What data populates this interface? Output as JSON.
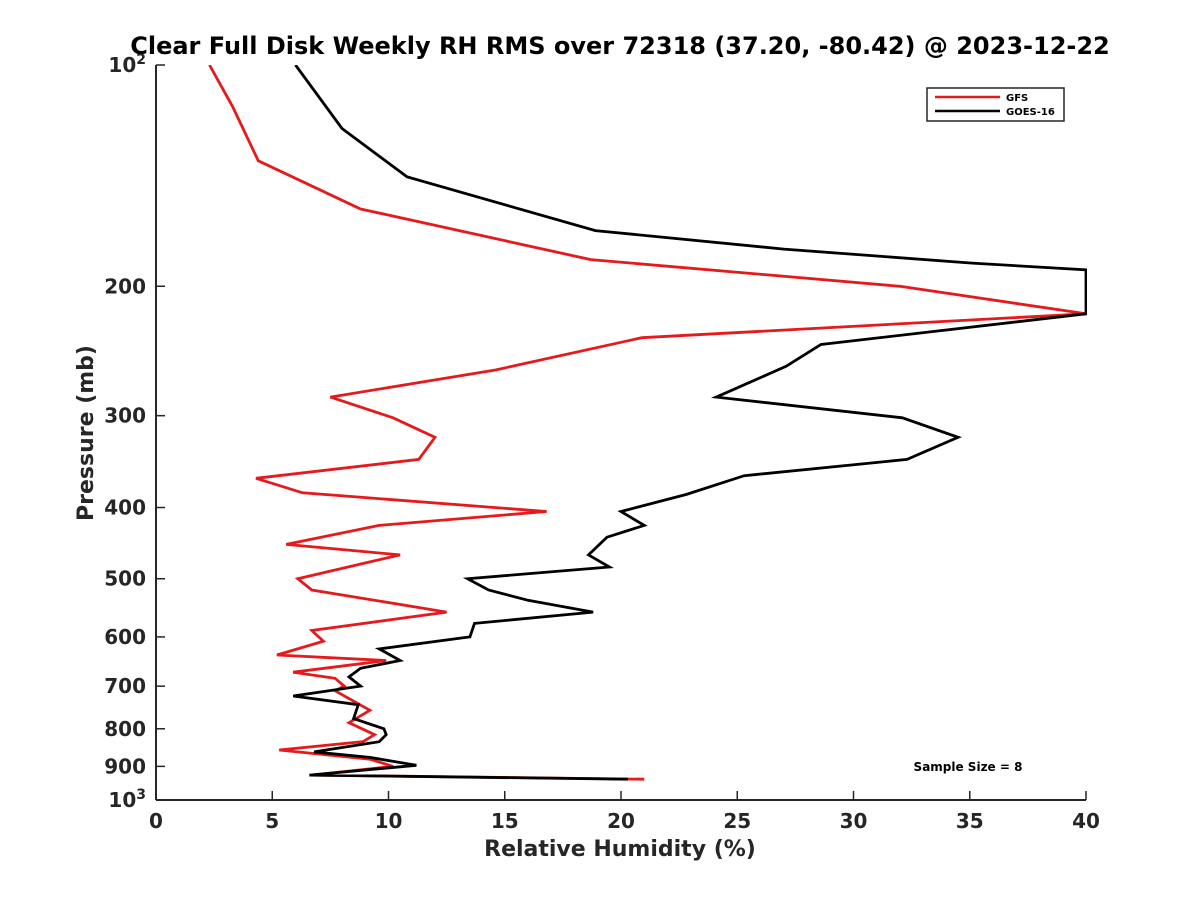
{
  "chart_data": {
    "type": "line",
    "title": "Clear Full Disk Weekly RH RMS over 72318 (37.20, -80.42) @ 2023-12-22",
    "xlabel": "Relative Humidity (%)",
    "ylabel": "Pressure (mb)",
    "xlim": [
      0,
      40
    ],
    "ylim": [
      100,
      1000
    ],
    "y_scale": "log",
    "y_reversed": true,
    "grid": false,
    "legend_position": "top-right",
    "x_ticks": [
      {
        "value": 0,
        "label": "0"
      },
      {
        "value": 5,
        "label": "5"
      },
      {
        "value": 10,
        "label": "10"
      },
      {
        "value": 15,
        "label": "15"
      },
      {
        "value": 20,
        "label": "20"
      },
      {
        "value": 25,
        "label": "25"
      },
      {
        "value": 30,
        "label": "30"
      },
      {
        "value": 35,
        "label": "35"
      },
      {
        "value": 40,
        "label": "40"
      }
    ],
    "y_ticks": [
      {
        "value": 100,
        "base": "10",
        "exp": "2"
      },
      {
        "value": 200,
        "label": "200"
      },
      {
        "value": 300,
        "label": "300"
      },
      {
        "value": 400,
        "label": "400"
      },
      {
        "value": 500,
        "label": "500"
      },
      {
        "value": 600,
        "label": "600"
      },
      {
        "value": 700,
        "label": "700"
      },
      {
        "value": 800,
        "label": "800"
      },
      {
        "value": 900,
        "label": "900"
      },
      {
        "value": 1000,
        "base": "10",
        "exp": "3"
      }
    ],
    "annotation": "Sample Size = 8",
    "series": [
      {
        "name": "GFS",
        "color": "#e41a1c",
        "points": [
          [
            2.3,
            100
          ],
          [
            3.3,
            114
          ],
          [
            4.4,
            135
          ],
          [
            8.8,
            157
          ],
          [
            18.7,
            184
          ],
          [
            32,
            200
          ],
          [
            40,
            218
          ],
          [
            20.9,
            235
          ],
          [
            14.6,
            260
          ],
          [
            7.5,
            283
          ],
          [
            10.2,
            302
          ],
          [
            12,
            321
          ],
          [
            11.3,
            344
          ],
          [
            4.3,
            365
          ],
          [
            6.3,
            382
          ],
          [
            16.8,
            405
          ],
          [
            9.6,
            423
          ],
          [
            5.6,
            449
          ],
          [
            10.5,
            464
          ],
          [
            6.1,
            500
          ],
          [
            6.7,
            518
          ],
          [
            12.5,
            555
          ],
          [
            6.7,
            588
          ],
          [
            7.2,
            608
          ],
          [
            5.2,
            635
          ],
          [
            9.9,
            646
          ],
          [
            5.9,
            670
          ],
          [
            7.7,
            683
          ],
          [
            8.1,
            700
          ],
          [
            7.7,
            710
          ],
          [
            9.2,
            755
          ],
          [
            8.3,
            785
          ],
          [
            9.4,
            815
          ],
          [
            8.9,
            833
          ],
          [
            5.3,
            855
          ],
          [
            9.2,
            880
          ],
          [
            10.2,
            900
          ],
          [
            6.7,
            925
          ],
          [
            21,
            937
          ]
        ]
      },
      {
        "name": "GOES-16",
        "color": "#000000",
        "points": [
          [
            6,
            100
          ],
          [
            8,
            122
          ],
          [
            10.8,
            142
          ],
          [
            18.9,
            168
          ],
          [
            27,
            178
          ],
          [
            35.1,
            186
          ],
          [
            40,
            190
          ],
          [
            40,
            218
          ],
          [
            28.6,
            240
          ],
          [
            27.1,
            257
          ],
          [
            24.1,
            283
          ],
          [
            32.1,
            302
          ],
          [
            34.5,
            321
          ],
          [
            32.3,
            344
          ],
          [
            25.3,
            362
          ],
          [
            22.8,
            384
          ],
          [
            20,
            405
          ],
          [
            21,
            423
          ],
          [
            19.4,
            439
          ],
          [
            18.6,
            464
          ],
          [
            19.5,
            482
          ],
          [
            13.4,
            500
          ],
          [
            14.3,
            518
          ],
          [
            16,
            535
          ],
          [
            18.8,
            555
          ],
          [
            13.7,
            575
          ],
          [
            13.5,
            600
          ],
          [
            9.6,
            623
          ],
          [
            10.5,
            646
          ],
          [
            8.8,
            662
          ],
          [
            8.3,
            680
          ],
          [
            8.8,
            700
          ],
          [
            5.9,
            722
          ],
          [
            8.7,
            742
          ],
          [
            8.5,
            775
          ],
          [
            9.8,
            800
          ],
          [
            9.9,
            815
          ],
          [
            9.6,
            833
          ],
          [
            6.8,
            860
          ],
          [
            9.2,
            875
          ],
          [
            11.2,
            897
          ],
          [
            6.6,
            925
          ],
          [
            20.3,
            937
          ]
        ]
      }
    ]
  }
}
